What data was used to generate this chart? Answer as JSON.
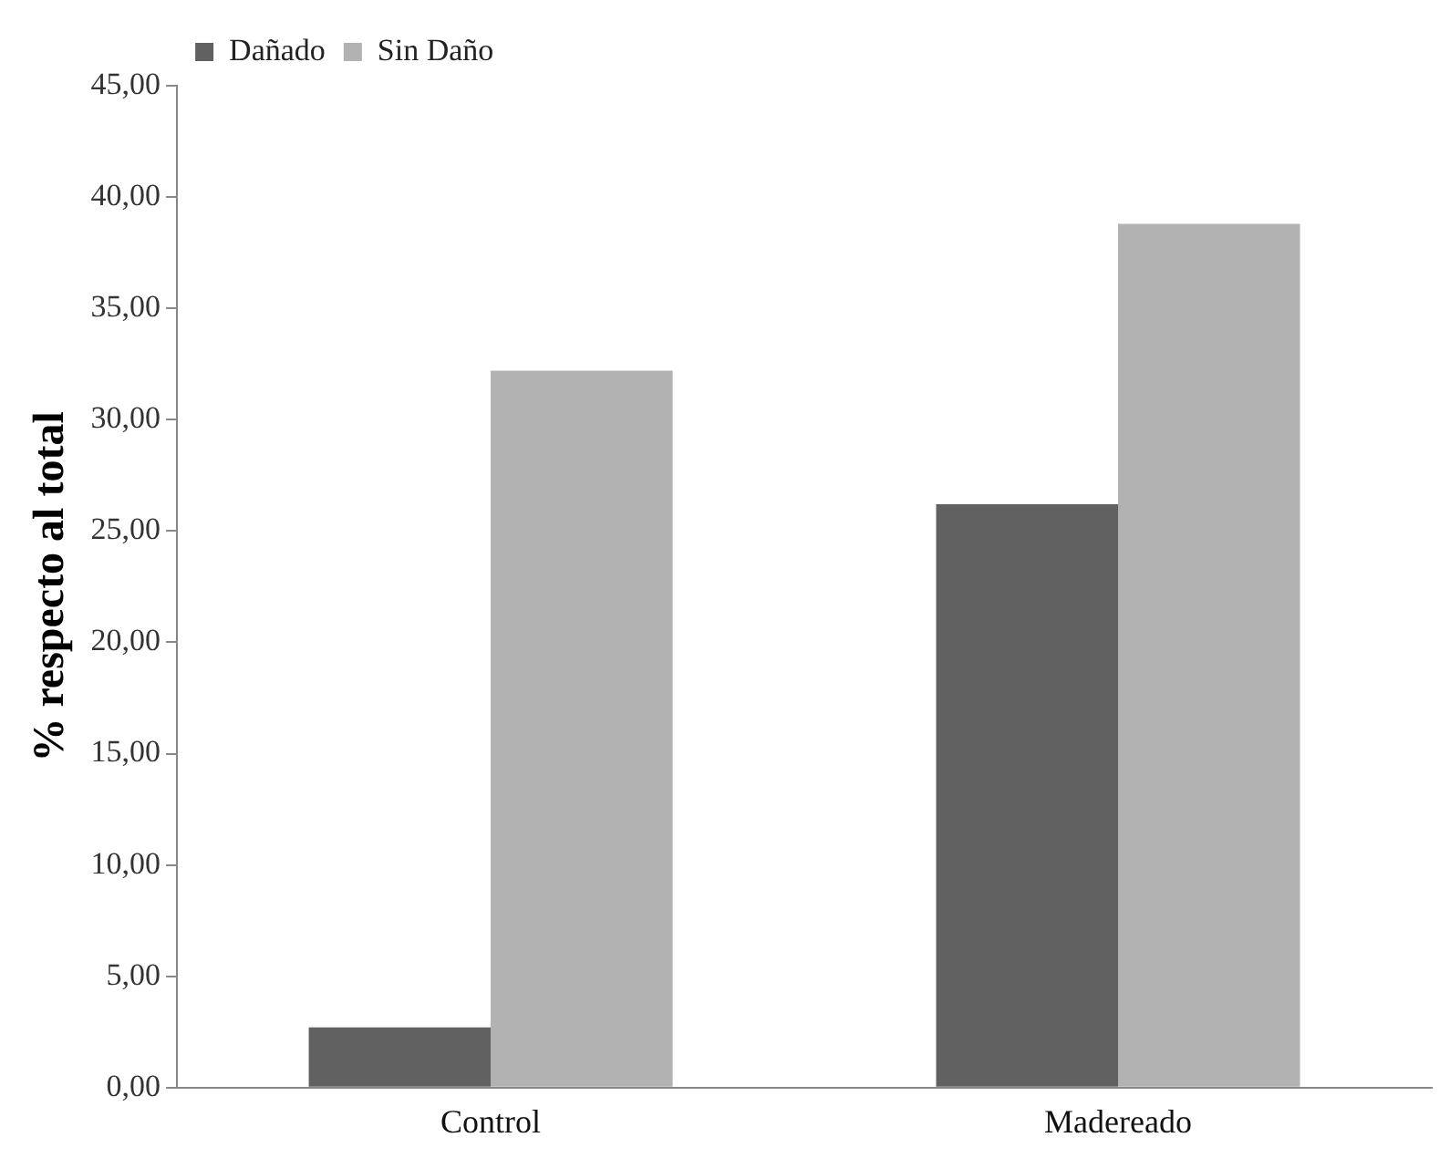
{
  "chart_data": {
    "type": "bar",
    "ylabel": "% respecto al total",
    "categories": [
      "Control",
      "Madereado"
    ],
    "series": [
      {
        "name": "Dañado",
        "color": "#616161",
        "values": [
          2.7,
          26.2
        ]
      },
      {
        "name": "Sin Daño",
        "color": "#b2b2b2",
        "values": [
          32.2,
          38.8
        ]
      }
    ],
    "ylim": [
      0,
      45
    ],
    "yticks": [
      {
        "value": 0,
        "label": "0,00"
      },
      {
        "value": 5,
        "label": "5,00"
      },
      {
        "value": 10,
        "label": "10,00"
      },
      {
        "value": 15,
        "label": "15,00"
      },
      {
        "value": 20,
        "label": "20,00"
      },
      {
        "value": 25,
        "label": "25,00"
      },
      {
        "value": 30,
        "label": "30,00"
      },
      {
        "value": 35,
        "label": "35,00"
      },
      {
        "value": 40,
        "label": "40,00"
      },
      {
        "value": 45,
        "label": "45,00"
      }
    ],
    "grid": false,
    "legend": "top left"
  }
}
